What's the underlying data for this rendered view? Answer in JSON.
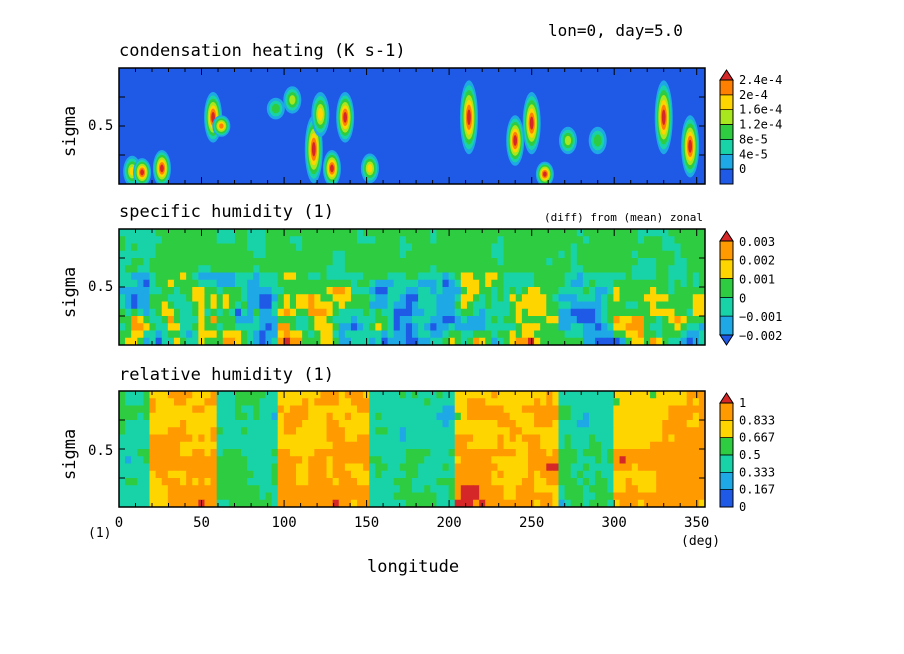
{
  "header": {
    "run_label": "lon=0, day=5.0"
  },
  "axes": {
    "x_label": "longitude",
    "x_unit": "(deg)",
    "y_unit": "(1)",
    "x_ticks": [
      "0",
      "50",
      "100",
      "150",
      "200",
      "250",
      "300",
      "350"
    ],
    "y_label": "sigma",
    "y_tick": "0.5"
  },
  "chart_data": [
    {
      "type": "heatmap",
      "title": "condensation heating (K s-1)",
      "note": "",
      "xlim": [
        0,
        355
      ],
      "ylim": [
        0.0,
        1.0
      ],
      "y_reversed": true,
      "colorbar_ticks": [
        "2.4e-4",
        "2e-4",
        "1.6e-4",
        "1.2e-4",
        "8e-5",
        "4e-5",
        "0"
      ],
      "colorbar_colors": [
        "#d62728",
        "#ff7f00",
        "#ffd500",
        "#a8e61e",
        "#2ecc40",
        "#19d3a8",
        "#1ea8e6",
        "#1f5ae6"
      ],
      "background_level": "0",
      "features": [
        {
          "lon": 8,
          "sigma_from": 0.8,
          "sigma_to": 0.98,
          "peak": 0.00016
        },
        {
          "lon": 14,
          "sigma_from": 0.82,
          "sigma_to": 0.98,
          "peak": 0.00024
        },
        {
          "lon": 26,
          "sigma_from": 0.75,
          "sigma_to": 0.98,
          "peak": 0.00024
        },
        {
          "lon": 57,
          "sigma_from": 0.25,
          "sigma_to": 0.6,
          "peak": 0.00024
        },
        {
          "lon": 62,
          "sigma_from": 0.45,
          "sigma_to": 0.55,
          "peak": 0.0002
        },
        {
          "lon": 95,
          "sigma_from": 0.3,
          "sigma_to": 0.4,
          "peak": 8e-05
        },
        {
          "lon": 105,
          "sigma_from": 0.2,
          "sigma_to": 0.35,
          "peak": 0.00012
        },
        {
          "lon": 118,
          "sigma_from": 0.45,
          "sigma_to": 0.95,
          "peak": 0.00024
        },
        {
          "lon": 122,
          "sigma_from": 0.25,
          "sigma_to": 0.55,
          "peak": 0.00016
        },
        {
          "lon": 129,
          "sigma_from": 0.75,
          "sigma_to": 0.98,
          "peak": 0.00024
        },
        {
          "lon": 137,
          "sigma_from": 0.25,
          "sigma_to": 0.6,
          "peak": 0.00024
        },
        {
          "lon": 152,
          "sigma_from": 0.78,
          "sigma_to": 0.95,
          "peak": 0.00016
        },
        {
          "lon": 212,
          "sigma_from": 0.15,
          "sigma_to": 0.7,
          "peak": 0.00024
        },
        {
          "lon": 240,
          "sigma_from": 0.45,
          "sigma_to": 0.8,
          "peak": 0.00024
        },
        {
          "lon": 250,
          "sigma_from": 0.25,
          "sigma_to": 0.7,
          "peak": 0.00024
        },
        {
          "lon": 258,
          "sigma_from": 0.85,
          "sigma_to": 0.98,
          "peak": 0.00024
        },
        {
          "lon": 272,
          "sigma_from": 0.55,
          "sigma_to": 0.7,
          "peak": 0.00012
        },
        {
          "lon": 290,
          "sigma_from": 0.55,
          "sigma_to": 0.7,
          "peak": 8e-05
        },
        {
          "lon": 330,
          "sigma_from": 0.15,
          "sigma_to": 0.7,
          "peak": 0.00024
        },
        {
          "lon": 346,
          "sigma_from": 0.45,
          "sigma_to": 0.9,
          "peak": 0.00024
        }
      ]
    },
    {
      "type": "heatmap",
      "title": "specific humidity (1)",
      "note": "(diff) from (mean) zonal",
      "xlim": [
        0,
        355
      ],
      "ylim": [
        0.0,
        1.0
      ],
      "y_reversed": true,
      "colorbar_ticks": [
        "0.003",
        "0.002",
        "0.001",
        "0",
        "−0.001",
        "−0.002"
      ],
      "colorbar_colors": [
        "#d62728",
        "#ff9a00",
        "#ffd500",
        "#2ecc40",
        "#19d3a8",
        "#1ea8e6",
        "#1f5ae6"
      ],
      "range": [
        -0.0025,
        0.0035
      ]
    },
    {
      "type": "heatmap",
      "title": "relative humidity (1)",
      "note": "",
      "xlim": [
        0,
        355
      ],
      "ylim": [
        0.0,
        1.0
      ],
      "y_reversed": true,
      "colorbar_ticks": [
        "1",
        "0.833",
        "0.667",
        "0.5",
        "0.333",
        "0.167",
        "0"
      ],
      "colorbar_colors": [
        "#d62728",
        "#ff9a00",
        "#ffd500",
        "#2ecc40",
        "#19d3a8",
        "#1ea8e6",
        "#1f5ae6"
      ],
      "range": [
        0,
        1.05
      ]
    }
  ]
}
